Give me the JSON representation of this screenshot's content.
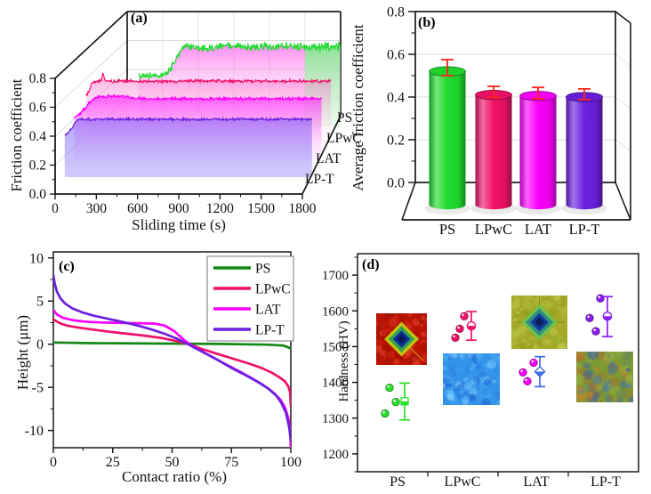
{
  "colors": {
    "ps_green": "#1edc2e",
    "ps_green_dark": "#128812",
    "lpwc_crimson": "#f01168",
    "lat_magenta": "#fb00fb",
    "lpt_purple": "#6b1fe0",
    "error_red": "#ff2218",
    "lat_error_blue": "#4169e1",
    "axis_black": "#1a1a1a",
    "grid_gray": "#dcdcdc"
  },
  "panels": {
    "a": {
      "tag": "(a)",
      "xlabel": "Sliding time (s)",
      "ylabel": "Friction coefficient"
    },
    "b": {
      "tag": "(b)",
      "ylabel": "Average friction coefficient"
    },
    "c": {
      "tag": "(c)",
      "xlabel": "Contact ratio (%)",
      "ylabel": "Height (μm)"
    },
    "d": {
      "tag": "(d)",
      "ylabel": "Hardness (HV)"
    }
  },
  "chart_data": [
    {
      "id": "a",
      "type": "line",
      "projection": "3d_waterfall",
      "title": "(a)",
      "xlabel": "Sliding time (s)",
      "ylabel": "Friction coefficient",
      "xlim": [
        0,
        1800
      ],
      "ylim": [
        0,
        0.8
      ],
      "xticks": [
        0,
        300,
        600,
        900,
        1200,
        1500,
        1800
      ],
      "ytick_labels": [
        "0.0",
        "0.2",
        "0.4",
        "0.6",
        "0.8"
      ],
      "depth_order_front_to_back": [
        "LP-T",
        "LAT",
        "LPwC",
        "PS"
      ],
      "series": [
        {
          "name": "PS",
          "color": "#1edc2e",
          "depth": 4,
          "t_start": 330,
          "initial": 0.35,
          "ramp_start": 500,
          "ramp_end": 690,
          "steady": 0.55,
          "noise": 0.013
        },
        {
          "name": "LPwC",
          "color": "#f01168",
          "depth": 3,
          "t_start": 15,
          "initial": 0.33,
          "ramp_start": 15,
          "ramp_end": 75,
          "steady": 0.43,
          "noise": 0.007
        },
        {
          "name": "LAT",
          "color": "#fb00fb",
          "depth": 2,
          "t_start": 0,
          "initial": 0.3,
          "ramp_start": 0,
          "ramp_end": 170,
          "steady": 0.425,
          "noise": 0.007
        },
        {
          "name": "LP-T",
          "color": "#6b1fe0",
          "depth": 1,
          "t_start": 0,
          "initial": 0.29,
          "ramp_start": 0,
          "ramp_end": 110,
          "steady": 0.4,
          "noise": 0.006
        }
      ]
    },
    {
      "id": "b",
      "type": "bar",
      "projection": "3d_cylinder",
      "title": "(b)",
      "ylabel": "Average friction coefficient",
      "ylim": [
        0,
        0.8
      ],
      "ytick_labels": [
        "0.0",
        "0.2",
        "0.4",
        "0.6",
        "0.8"
      ],
      "categories": [
        "PS",
        "LPwC",
        "LAT",
        "LP-T"
      ],
      "values": [
        0.52,
        0.41,
        0.405,
        0.4
      ],
      "err_low": [
        0.5,
        0.398,
        0.392,
        0.388
      ],
      "err_high": [
        0.575,
        0.45,
        0.445,
        0.438
      ],
      "bar_colors": [
        "#1edc2e",
        "#f01168",
        "#fb00fb",
        "#6b1fe0"
      ],
      "error_color": "#ff2218"
    },
    {
      "id": "c",
      "type": "line",
      "title": "(c)",
      "xlabel": "Contact ratio (%)",
      "ylabel": "Height (μm)",
      "xlim": [
        0,
        100
      ],
      "ylim": [
        -12,
        10.7
      ],
      "xticks": [
        0,
        25,
        50,
        75,
        100
      ],
      "yticks": [
        -10,
        -5,
        0,
        5,
        10
      ],
      "legend_position": "top-right",
      "series": [
        {
          "name": "PS",
          "color": "#128812",
          "points": [
            [
              0,
              0.2
            ],
            [
              15,
              0.12
            ],
            [
              40,
              0.08
            ],
            [
              70,
              0.03
            ],
            [
              90,
              -0.05
            ],
            [
              97,
              -0.15
            ],
            [
              100,
              -0.5
            ]
          ]
        },
        {
          "name": "LPwC",
          "color": "#f01168",
          "points": [
            [
              0,
              2.9
            ],
            [
              1,
              2.7
            ],
            [
              3,
              2.4
            ],
            [
              6,
              2.15
            ],
            [
              10,
              1.95
            ],
            [
              15,
              1.75
            ],
            [
              22,
              1.5
            ],
            [
              30,
              1.25
            ],
            [
              38,
              1.0
            ],
            [
              46,
              0.7
            ],
            [
              52,
              0.35
            ],
            [
              57,
              0
            ],
            [
              63,
              -0.6
            ],
            [
              70,
              -1.2
            ],
            [
              77,
              -1.8
            ],
            [
              83,
              -2.3
            ],
            [
              88,
              -2.8
            ],
            [
              92,
              -3.3
            ],
            [
              95,
              -3.8
            ],
            [
              97.5,
              -4.3
            ],
            [
              99,
              -4.9
            ],
            [
              99.7,
              -5.6
            ],
            [
              100,
              -7.2
            ]
          ]
        },
        {
          "name": "LAT",
          "color": "#fb00fb",
          "points": [
            [
              0,
              3.95
            ],
            [
              1.5,
              3.45
            ],
            [
              4,
              3.05
            ],
            [
              8,
              2.8
            ],
            [
              13,
              2.62
            ],
            [
              20,
              2.52
            ],
            [
              28,
              2.47
            ],
            [
              36,
              2.44
            ],
            [
              43,
              2.38
            ],
            [
              47,
              2.15
            ],
            [
              51,
              1.5
            ],
            [
              55,
              0.5
            ],
            [
              58,
              -0.1
            ],
            [
              62,
              -0.75
            ],
            [
              67,
              -1.5
            ],
            [
              72,
              -2.25
            ],
            [
              78,
              -3.1
            ],
            [
              83,
              -3.85
            ],
            [
              87,
              -4.5
            ],
            [
              90,
              -5.05
            ],
            [
              93,
              -5.7
            ],
            [
              95.5,
              -6.4
            ],
            [
              97.5,
              -7.3
            ],
            [
              99,
              -8.6
            ],
            [
              99.7,
              -10
            ],
            [
              100,
              -12
            ]
          ]
        },
        {
          "name": "LP-T",
          "color": "#6b1fe0",
          "points": [
            [
              0,
              8.0
            ],
            [
              0.6,
              7.0
            ],
            [
              1.5,
              6.1
            ],
            [
              3,
              5.3
            ],
            [
              5,
              4.7
            ],
            [
              8,
              4.15
            ],
            [
              12,
              3.7
            ],
            [
              17,
              3.3
            ],
            [
              22,
              3.0
            ],
            [
              27,
              2.7
            ],
            [
              32,
              2.4
            ],
            [
              37,
              2.05
            ],
            [
              42,
              1.65
            ],
            [
              47,
              1.2
            ],
            [
              52,
              0.65
            ],
            [
              56,
              0.1
            ],
            [
              59,
              -0.35
            ],
            [
              64,
              -1.05
            ],
            [
              70,
              -1.95
            ],
            [
              76,
              -2.9
            ],
            [
              81,
              -3.6
            ],
            [
              85,
              -4.2
            ],
            [
              88,
              -4.7
            ],
            [
              91,
              -5.25
            ],
            [
              94,
              -6.0
            ],
            [
              96,
              -6.8
            ],
            [
              98,
              -8.0
            ],
            [
              99.3,
              -9.6
            ],
            [
              100,
              -11.2
            ]
          ]
        }
      ]
    },
    {
      "id": "d",
      "type": "scatter",
      "title": "(d)",
      "ylabel": "Hardness (HV)",
      "ylim": [
        1150,
        1760
      ],
      "yticks": [
        1200,
        1300,
        1400,
        1500,
        1600,
        1700
      ],
      "categories": [
        "PS",
        "LPwC",
        "LAT",
        "LP-T"
      ],
      "groups": [
        {
          "name": "PS",
          "color": "#2ae02a",
          "err_color": "#2ae02a",
          "mean_marker": "square",
          "points": [
            1385,
            1345,
            1313
          ],
          "point_dx": [
            -9,
            -2,
            -14
          ],
          "mean": 1347,
          "err": [
            1295,
            1398
          ],
          "err_dx": 8
        },
        {
          "name": "LPwC",
          "color": "#f01168",
          "err_color": "#f01168",
          "mean_marker": "circle",
          "points": [
            1585,
            1550,
            1525
          ],
          "point_dx": [
            2,
            -3,
            -8
          ],
          "mean": 1558,
          "err": [
            1518,
            1598
          ],
          "err_dx": 10
        },
        {
          "name": "LAT",
          "color": "#fb00fb",
          "err_color": "#4169e1",
          "mean_marker": "diamond",
          "points": [
            1455,
            1428,
            1403
          ],
          "point_dx": [
            -3,
            -15,
            -10
          ],
          "mean": 1430,
          "err": [
            1388,
            1472
          ],
          "err_dx": 4
        },
        {
          "name": "LP-T",
          "color": "#8a1ff0",
          "err_color": "#8a1ff0",
          "mean_marker": "circle",
          "points": [
            1635,
            1580,
            1543
          ],
          "point_dx": [
            -6,
            -18,
            -11
          ],
          "mean": 1585,
          "err": [
            1528,
            1640
          ],
          "err_dx": 2
        }
      ],
      "insets": [
        {
          "name": "ps-indent-micrograph",
          "x": 423,
          "y": 352,
          "w": 57,
          "h": 58,
          "palette": [
            "#b81200",
            "#d83018",
            "#8f0c00",
            "#e8503a"
          ],
          "indent": true,
          "rim": "#c3d00f",
          "mid": "#35a050",
          "pit": "#0d2f9a"
        },
        {
          "name": "lpwc-surface-micrograph",
          "x": 498,
          "y": 397,
          "w": 64,
          "h": 58,
          "palette": [
            "#3392ea",
            "#5cc2f8",
            "#1b55cc",
            "#8fd8ff",
            "#2470dd"
          ],
          "indent": false
        },
        {
          "name": "lat-indent-micrograph",
          "x": 575,
          "y": 332,
          "w": 63,
          "h": 60,
          "palette": [
            "#a4aa28",
            "#bec63e",
            "#8a9418",
            "#cdd45c"
          ],
          "indent": true,
          "rim": "#6cc24f",
          "mid": "#2e8f80",
          "pit": "#123a9e"
        },
        {
          "name": "lpt-surface-micrograph",
          "x": 648,
          "y": 395,
          "w": 64,
          "h": 57,
          "palette": [
            "#7d9a33",
            "#c8862e",
            "#2b57c8",
            "#9ab648",
            "#3c78d0",
            "#b0632a"
          ],
          "indent": false
        }
      ]
    }
  ]
}
